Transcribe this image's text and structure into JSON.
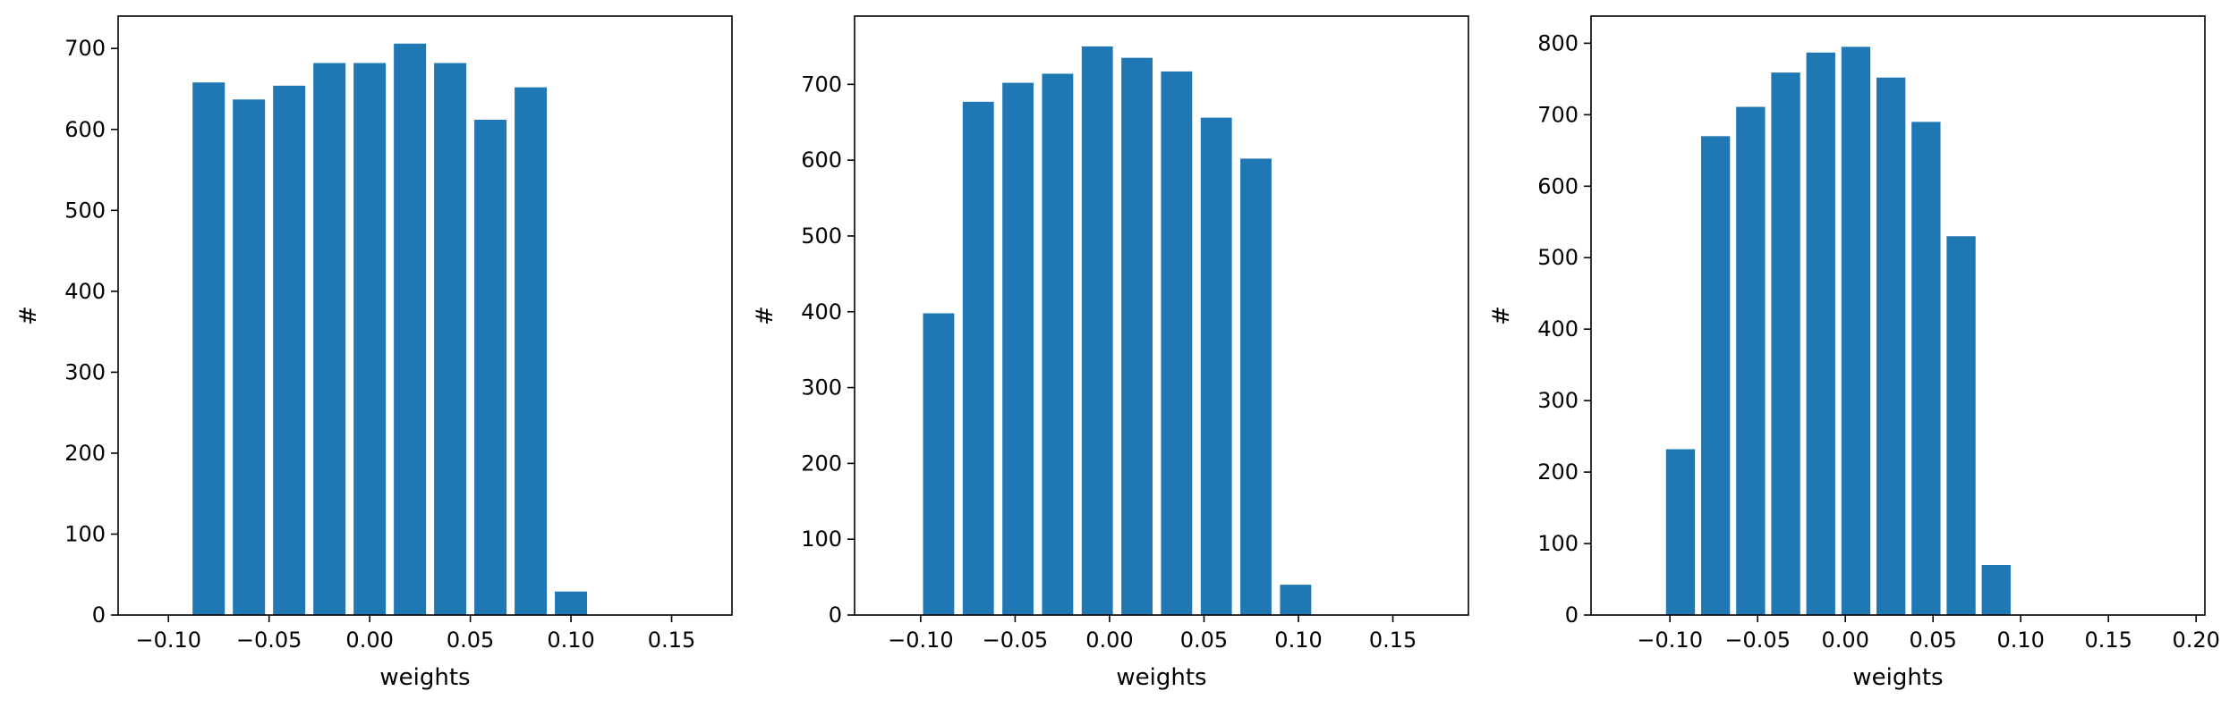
{
  "chart_data": [
    {
      "type": "bar",
      "xlabel": "weights",
      "ylabel": "#",
      "xlim": [
        -0.125,
        0.18
      ],
      "ylim": [
        0,
        740
      ],
      "xticks": [
        -0.1,
        -0.05,
        0.0,
        0.05,
        0.1,
        0.15
      ],
      "xtick_labels": [
        "−0.10",
        "−0.05",
        "0.00",
        "0.05",
        "0.10",
        "0.15"
      ],
      "yticks": [
        0,
        100,
        200,
        300,
        400,
        500,
        600,
        700
      ],
      "ytick_labels": [
        "0",
        "100",
        "200",
        "300",
        "400",
        "500",
        "600",
        "700"
      ],
      "bar_width": 0.016,
      "x": [
        -0.08,
        -0.06,
        -0.04,
        -0.02,
        0.0,
        0.02,
        0.04,
        0.06,
        0.08,
        0.1
      ],
      "values": [
        658,
        637,
        654,
        682,
        682,
        706,
        682,
        612,
        652,
        29
      ],
      "color": "#1f77b4",
      "grid": false
    },
    {
      "type": "bar",
      "xlabel": "weights",
      "ylabel": "#",
      "xlim": [
        -0.135,
        0.19
      ],
      "ylim": [
        0,
        790
      ],
      "xticks": [
        -0.1,
        -0.05,
        0.0,
        0.05,
        0.1,
        0.15
      ],
      "xtick_labels": [
        "−0.10",
        "−0.05",
        "0.00",
        "0.05",
        "0.10",
        "0.15"
      ],
      "yticks": [
        0,
        100,
        200,
        300,
        400,
        500,
        600,
        700
      ],
      "ytick_labels": [
        "0",
        "100",
        "200",
        "300",
        "400",
        "500",
        "600",
        "700"
      ],
      "bar_width": 0.0165,
      "x": [
        -0.0905,
        -0.0695,
        -0.0485,
        -0.0275,
        -0.0065,
        0.0145,
        0.0355,
        0.0565,
        0.0775,
        0.0985
      ],
      "values": [
        398,
        677,
        702,
        714,
        750,
        735,
        717,
        656,
        602,
        40
      ],
      "color": "#1f77b4",
      "grid": false
    },
    {
      "type": "bar",
      "xlabel": "weights",
      "ylabel": "#",
      "xlim": [
        -0.145,
        0.205
      ],
      "ylim": [
        0,
        838
      ],
      "xticks": [
        -0.1,
        -0.05,
        0.0,
        0.05,
        0.1,
        0.15,
        0.2
      ],
      "xtick_labels": [
        "−0.10",
        "−0.05",
        "0.00",
        "0.05",
        "0.10",
        "0.15",
        "0.20"
      ],
      "yticks": [
        0,
        100,
        200,
        300,
        400,
        500,
        600,
        700,
        800
      ],
      "ytick_labels": [
        "0",
        "100",
        "200",
        "300",
        "400",
        "500",
        "600",
        "700",
        "800"
      ],
      "bar_width": 0.0165,
      "x": [
        -0.094,
        -0.074,
        -0.054,
        -0.034,
        -0.014,
        0.006,
        0.026,
        0.046,
        0.066,
        0.086,
        0.106
      ],
      "values": [
        232,
        670,
        711,
        759,
        787,
        795,
        752,
        690,
        530,
        70,
        0
      ],
      "color": "#1f77b4",
      "grid": false
    }
  ]
}
